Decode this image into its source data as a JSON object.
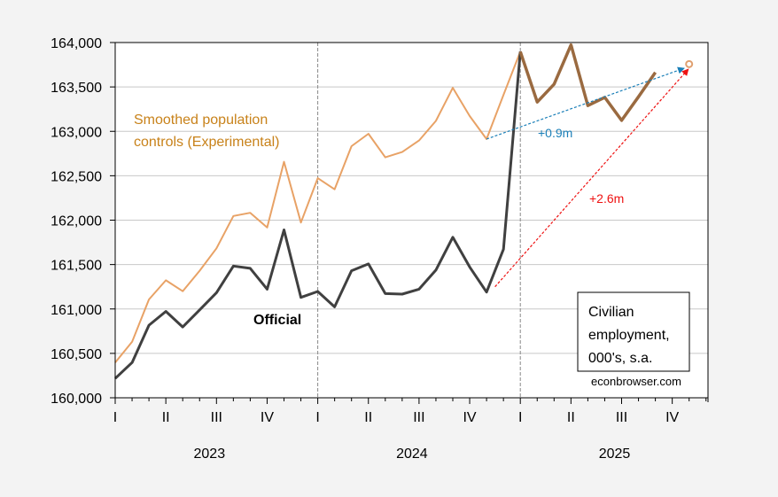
{
  "chart_data": {
    "type": "line",
    "title": "",
    "xlabel": "",
    "ylabel": "",
    "ylim": [
      160000,
      164000
    ],
    "yticks": [
      160000,
      160500,
      161000,
      161500,
      162000,
      162500,
      163000,
      163500,
      164000
    ],
    "ytick_labels": [
      "160,000",
      "160,500",
      "161,000",
      "161,500",
      "162,000",
      "162,500",
      "163,000",
      "163,500",
      "164,000"
    ],
    "grid": true,
    "x_start": "2023-01",
    "x_end": "2025-12",
    "quarter_labels": [
      "I",
      "II",
      "III",
      "IV",
      "I",
      "II",
      "III",
      "IV",
      "I",
      "II",
      "III",
      "IV"
    ],
    "year_labels": [
      "2023",
      "2024",
      "2025"
    ],
    "x": [
      "2023-01",
      "2023-02",
      "2023-03",
      "2023-04",
      "2023-05",
      "2023-06",
      "2023-07",
      "2023-08",
      "2023-09",
      "2023-10",
      "2023-11",
      "2023-12",
      "2024-01",
      "2024-02",
      "2024-03",
      "2024-04",
      "2024-05",
      "2024-06",
      "2024-07",
      "2024-08",
      "2024-09",
      "2024-10",
      "2024-11",
      "2024-12",
      "2025-01",
      "2025-02",
      "2025-03",
      "2025-04",
      "2025-05",
      "2025-06",
      "2025-07",
      "2025-08",
      "2025-09"
    ],
    "series": [
      {
        "name": "Smoothed population controls (Experimental)",
        "color": "#e8a266",
        "label_color": "#c8821a",
        "values": [
          160397,
          160630,
          161107,
          161323,
          161200,
          161430,
          161683,
          162047,
          162083,
          161917,
          162657,
          161973,
          162473,
          162347,
          162833,
          162973,
          162707,
          162767,
          162897,
          163117,
          163490,
          163173,
          162913,
          163410,
          163897,
          null,
          null,
          null,
          null,
          null,
          null,
          null,
          null
        ]
      },
      {
        "name": "Official",
        "color": "#404040",
        "label_color": "#000000",
        "values": [
          160217,
          160397,
          160817,
          160973,
          160797,
          160990,
          161183,
          161483,
          161457,
          161223,
          161890,
          161130,
          161197,
          161023,
          161430,
          161507,
          161173,
          161167,
          161223,
          161437,
          161807,
          161473,
          161190,
          161673,
          163897,
          null,
          null,
          null,
          null,
          null,
          null,
          null,
          null
        ]
      },
      {
        "name": "Official (2025, coincides with smoothed)",
        "color": "#9a6a40",
        "values": [
          null,
          null,
          null,
          null,
          null,
          null,
          null,
          null,
          null,
          null,
          null,
          null,
          null,
          null,
          null,
          null,
          null,
          null,
          null,
          null,
          null,
          null,
          null,
          null,
          163897,
          163330,
          163530,
          163973,
          163290,
          163383,
          163123,
          163390,
          163663
        ]
      }
    ],
    "marker": {
      "x": "2025-11",
      "y": 163757,
      "color": "#e0a070",
      "shape": "open-circle"
    },
    "vlines": [
      "2024-01",
      "2025-01"
    ],
    "annotations": [
      {
        "text": "Smoothed population\ncontrols (Experimental)",
        "color": "#c8821a",
        "x": "2023-01",
        "y": 163080
      },
      {
        "text": "Official",
        "color": "#000000",
        "x": "2023-09",
        "y": 160880,
        "bold": true
      },
      {
        "text": "+0.9m",
        "color": "#1a7fb8",
        "x": "2025-02",
        "y": 162950
      },
      {
        "text": "+2.6m",
        "color": "#ee1111",
        "x": "2025-05",
        "y": 162200
      }
    ],
    "arrows": [
      {
        "name": "blue-arrow",
        "color": "#1a7fb8",
        "from": {
          "x": "2024-11",
          "y": 162913
        },
        "to": {
          "x": "2025-10.7",
          "y": 163710
        },
        "label": "+0.9m"
      },
      {
        "name": "red-arrow",
        "color": "#ee1111",
        "from": {
          "x": "2024-11.5",
          "y": 161250
        },
        "to": {
          "x": "2025-10.95",
          "y": 163700
        },
        "label": "+2.6m"
      }
    ],
    "legend_box": {
      "lines": [
        "Civilian",
        "employment,",
        "000's, s.a."
      ]
    },
    "source": "econbrowser.com"
  }
}
